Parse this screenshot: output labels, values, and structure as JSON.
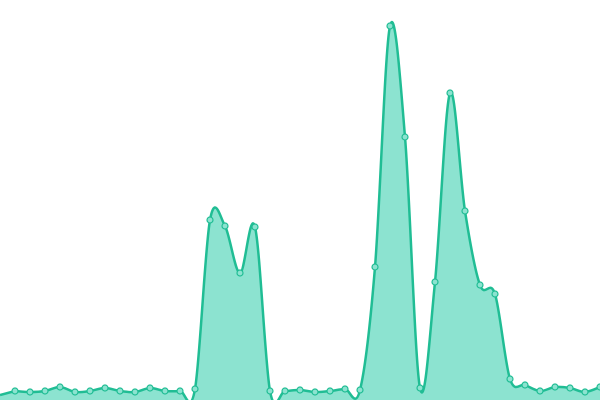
{
  "chart_data": {
    "type": "area",
    "values": [
      9,
      8,
      9,
      13,
      8,
      9,
      12,
      9,
      8,
      12,
      9,
      9,
      11,
      180,
      174,
      127,
      173,
      9,
      9,
      10,
      8,
      9,
      11,
      10,
      133,
      374,
      263,
      12,
      118,
      307,
      189,
      115,
      106,
      21,
      15,
      9,
      13,
      12,
      8,
      13
    ],
    "ylim": [
      0,
      400
    ],
    "color": "#20bd94",
    "fill": "#8ce3d0"
  }
}
